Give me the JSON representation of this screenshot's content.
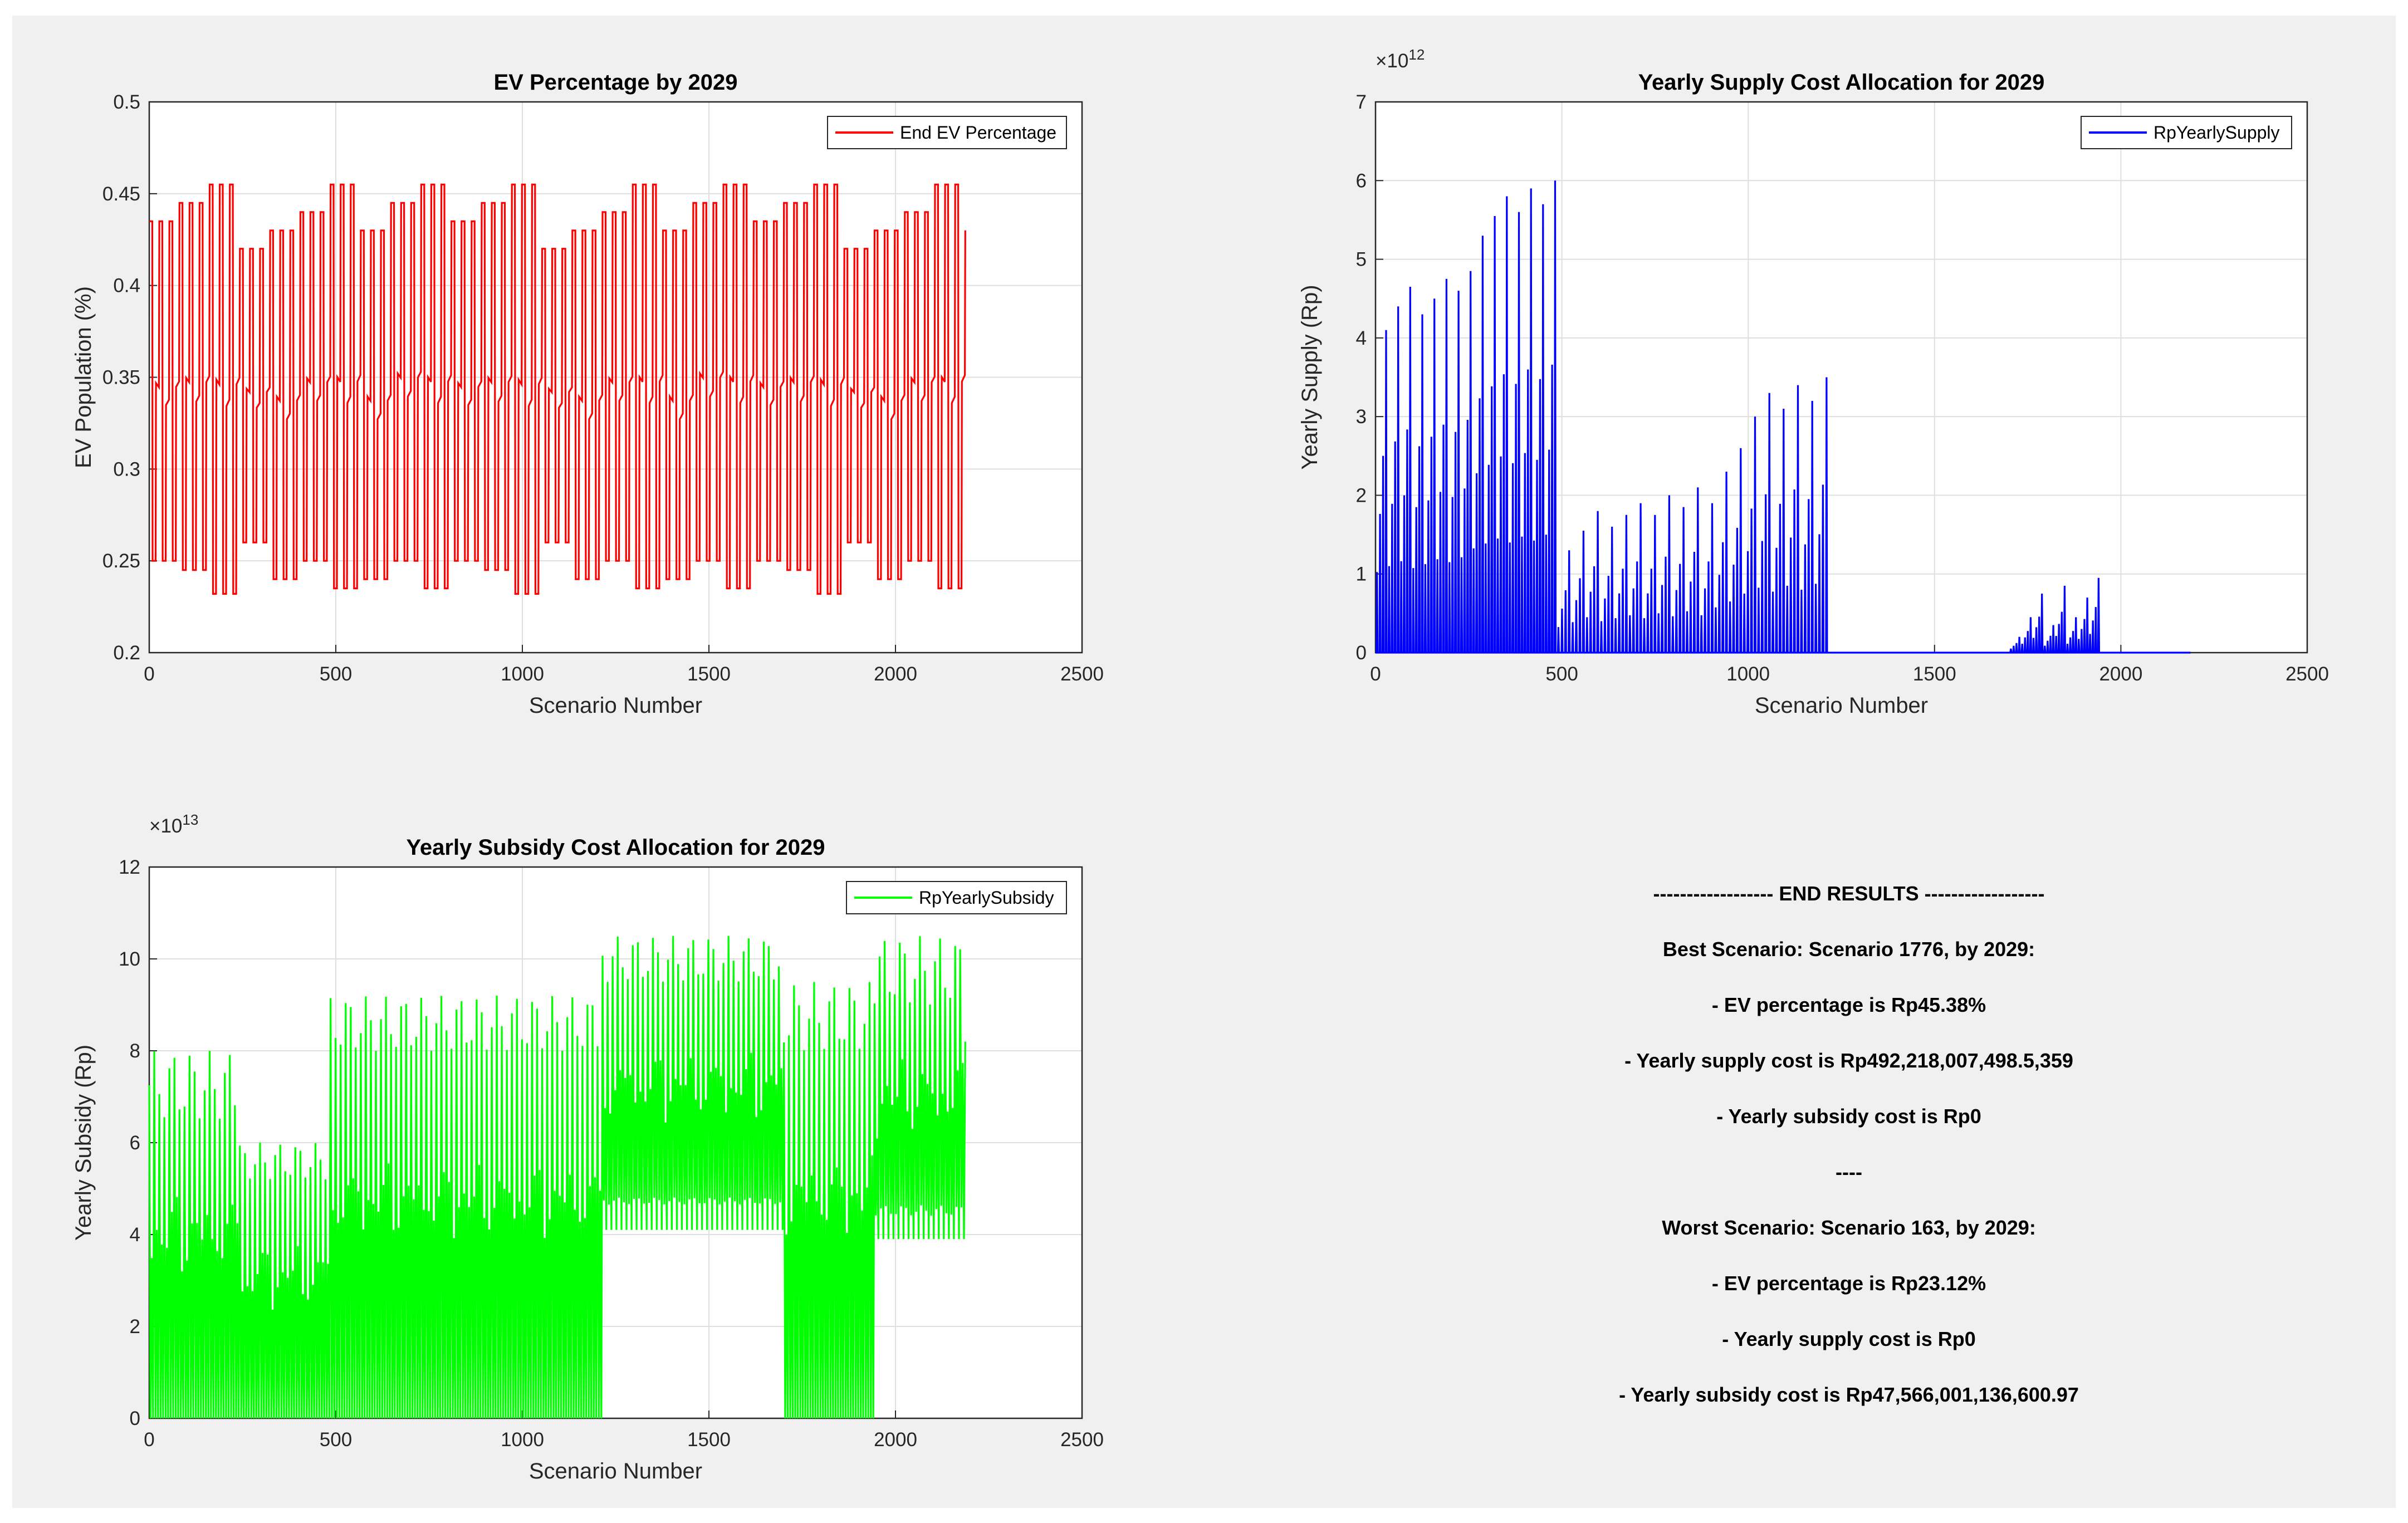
{
  "chart_data": [
    {
      "type": "line",
      "title": "EV Percentage by 2029",
      "xlabel": "Scenario Number",
      "ylabel": "EV Population (%)",
      "xlim": [
        0,
        2500
      ],
      "ylim": [
        0.2,
        0.5
      ],
      "xticks": [
        "0",
        "500",
        "1000",
        "1500",
        "2000",
        "2500"
      ],
      "yticks": [
        "0.2",
        "0.25",
        "0.3",
        "0.35",
        "0.4",
        "0.45",
        "0.5"
      ],
      "grid": true,
      "legend_position": "top-right",
      "color": "#ff0000",
      "series": [
        {
          "name": "End EV Percentage",
          "description": "Oscillating series over scenarios 0-2187; each cycle of about 81 scenarios ranges between about 0.24 and 0.45",
          "x_range": [
            0,
            2187
          ],
          "y_min": 0.2312,
          "y_max": 0.4538,
          "cycle_peaks": [
            0.435,
            0.445,
            0.455,
            0.42,
            0.43,
            0.44,
            0.455,
            0.43,
            0.445,
            0.455
          ],
          "cycle_troughs": [
            0.24,
            0.25,
            0.235,
            0.25,
            0.245,
            0.232,
            0.26,
            0.24,
            0.25,
            0.235
          ]
        }
      ]
    },
    {
      "type": "line",
      "title": "Yearly Supply Cost Allocation for 2029",
      "xlabel": "Scenario Number",
      "ylabel": "Yearly Supply (Rp)",
      "y_exponent": "×10^12",
      "xlim": [
        0,
        2500
      ],
      "ylim": [
        0,
        7
      ],
      "xticks": [
        "0",
        "500",
        "1000",
        "1500",
        "2000",
        "2500"
      ],
      "yticks": [
        "0",
        "1",
        "2",
        "3",
        "4",
        "5",
        "6",
        "7"
      ],
      "grid": true,
      "legend_position": "top-right",
      "color": "#0000ff",
      "series": [
        {
          "name": "RpYearlySupply",
          "segment_peaks": [
            {
              "x_range": [
                0,
                486
              ],
              "peaks": [
                4.1,
                4.4,
                4.65,
                4.3,
                4.5,
                4.75,
                4.6,
                4.85,
                5.3,
                5.55,
                5.8,
                5.6,
                5.9,
                5.7,
                6.0
              ]
            },
            {
              "x_range": [
                486,
                1215
              ],
              "peaks": [
                1.3,
                1.55,
                1.8,
                1.6,
                1.75,
                1.9,
                1.75,
                2.0,
                1.85,
                2.1,
                1.9,
                2.3,
                2.6,
                3.0,
                3.3,
                3.1,
                3.4,
                3.2,
                3.5
              ]
            },
            {
              "x_range": [
                1215,
                1701
              ],
              "peaks": [
                0,
                0,
                0,
                0,
                0,
                0
              ]
            },
            {
              "x_range": [
                1701,
                1944
              ],
              "peaks": [
                0.2,
                0.45,
                0.75,
                0.35,
                0.85,
                0.45,
                0.7,
                0.95
              ]
            },
            {
              "x_range": [
                1944,
                2187
              ],
              "peaks": [
                0,
                0,
                0
              ]
            }
          ]
        }
      ]
    },
    {
      "type": "line",
      "title": "Yearly Subsidy Cost Allocation for 2029",
      "xlabel": "Scenario Number",
      "ylabel": "Yearly Subsidy (Rp)",
      "y_exponent": "×10^13",
      "xlim": [
        0,
        2500
      ],
      "ylim": [
        0,
        12
      ],
      "xticks": [
        "0",
        "500",
        "1000",
        "1500",
        "2000",
        "2500"
      ],
      "yticks": [
        "0",
        "2",
        "4",
        "6",
        "8",
        "10",
        "12"
      ],
      "grid": true,
      "legend_position": "top-right",
      "color": "#00ff00",
      "series": [
        {
          "name": "RpYearlySubsidy",
          "segments": [
            {
              "x_range": [
                0,
                243
              ],
              "peak_range": [
                6.5,
                8.0
              ],
              "min": 0
            },
            {
              "x_range": [
                243,
                486
              ],
              "peak_range": [
                5.2,
                6.0
              ],
              "min": 0
            },
            {
              "x_range": [
                486,
                1215
              ],
              "peak_range": [
                8.0,
                9.2
              ],
              "min": 0
            },
            {
              "x_range": [
                1215,
                1701
              ],
              "peak_range": [
                9.5,
                10.5
              ],
              "min": 3.8
            },
            {
              "x_range": [
                1701,
                1944
              ],
              "peak_range": [
                8.0,
                9.5
              ],
              "min": 0
            },
            {
              "x_range": [
                1944,
                2187
              ],
              "peak_range": [
                9.0,
                10.5
              ],
              "min": 3.6
            }
          ]
        }
      ]
    }
  ],
  "results": {
    "header": "------------------ END RESULTS ------------------",
    "best_scenario": "Best Scenario: Scenario 1776, by 2029:",
    "best_ev": "- EV percentage is Rp45.38%",
    "best_supply": "- Yearly supply cost is Rp492,218,007,498.5,359",
    "best_subsidy": "- Yearly subsidy cost is Rp0",
    "separator": "----",
    "worst_scenario": "Worst Scenario: Scenario 163, by 2029:",
    "worst_ev": "- EV percentage is Rp23.12%",
    "worst_supply": "- Yearly supply cost is Rp0",
    "worst_subsidy": "- Yearly subsidy cost is Rp47,566,001,136,600.97"
  }
}
